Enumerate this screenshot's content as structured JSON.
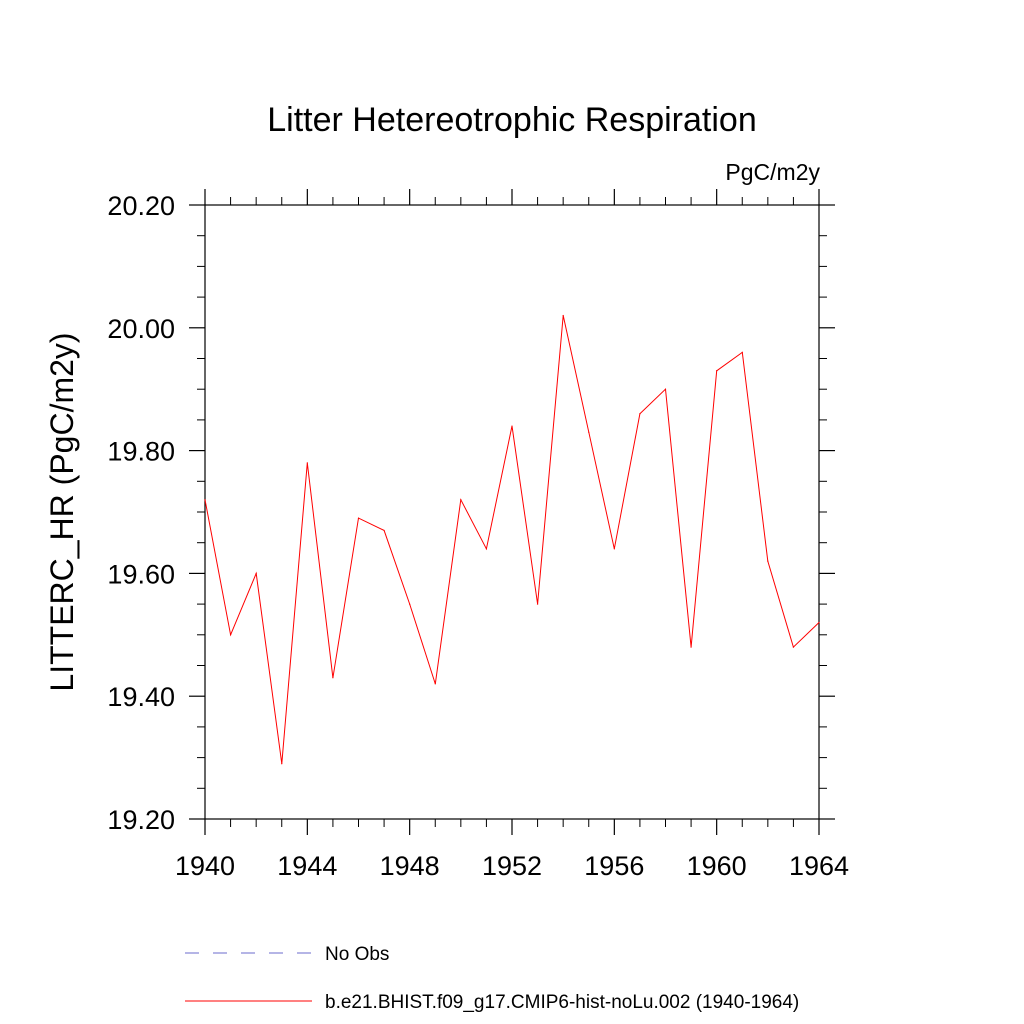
{
  "chart_data": {
    "type": "line",
    "title": "Litter Hetereotrophic Respiration",
    "units_label": "PgC/m2y",
    "ylabel": "LITTERC_HR  (PgC/m2y)",
    "xlabel": "",
    "xlim": [
      1940,
      1964
    ],
    "ylim": [
      19.2,
      20.2
    ],
    "x_ticks": [
      "1940",
      "1944",
      "1948",
      "1952",
      "1956",
      "1960",
      "1964"
    ],
    "y_ticks": [
      "19.20",
      "19.40",
      "19.60",
      "19.80",
      "20.00",
      "20.20"
    ],
    "grid": false,
    "legend_position": "bottom",
    "series": [
      {
        "name": "No Obs",
        "color": "#6b6bcc",
        "style": "dashed",
        "x": [],
        "y": []
      },
      {
        "name": "b.e21.BHIST.f09_g17.CMIP6-hist-noLu.002 (1940-1964)",
        "color": "#ff0000",
        "style": "solid",
        "x": [
          1940,
          1941,
          1942,
          1943,
          1944,
          1945,
          1946,
          1947,
          1948,
          1949,
          1950,
          1951,
          1952,
          1953,
          1954,
          1955,
          1956,
          1957,
          1958,
          1959,
          1960,
          1961,
          1962,
          1963,
          1964
        ],
        "y": [
          19.72,
          19.5,
          19.6,
          19.29,
          19.78,
          19.43,
          19.69,
          19.67,
          19.55,
          19.42,
          19.72,
          19.64,
          19.84,
          19.55,
          20.02,
          19.83,
          19.64,
          19.86,
          19.9,
          19.48,
          19.93,
          19.96,
          19.62,
          19.48,
          19.52
        ]
      }
    ]
  }
}
